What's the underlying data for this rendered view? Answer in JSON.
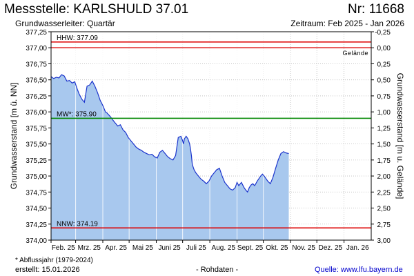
{
  "header": {
    "title": "Messstelle: KARLSHULD 37.01",
    "number": "Nr: 11668",
    "aquifer": "Grundwasserleiter: Quartär",
    "period": "Zeitraum: Feb 2025 - Jan 2026"
  },
  "footer": {
    "note": "* Abflussjahr (1979-2024)",
    "created": "erstellt:  15.01.2026",
    "raw": "- Rohdaten -",
    "source": "Quelle: www.lfu.bayern.de"
  },
  "colors": {
    "area": "#a8c8ee",
    "line": "#1a33cc",
    "hhw": "#dd0000",
    "nnw": "#dd0000",
    "mw": "#008800",
    "gelaende": "#dd0000",
    "grid": "#bbbbbb"
  },
  "chart_data": {
    "type": "area",
    "ylabel": "Grundwasserstand [m ü. NN]",
    "ylabel_right": "Grundwasserstand [m u. Gelände]",
    "ylim": [
      374.0,
      377.25
    ],
    "ylim_right": [
      -0.25,
      3.0
    ],
    "yticks": [
      "374,00",
      "374,25",
      "374,50",
      "374,75",
      "375,00",
      "375,25",
      "375,50",
      "375,75",
      "376,00",
      "376,25",
      "376,50",
      "376,75",
      "377,00",
      "377,25"
    ],
    "yticks_right": [
      "-0,25",
      "0,00",
      "0,25",
      "0,50",
      "0,75",
      "1,00",
      "1,25",
      "1,50",
      "1,75",
      "2,00",
      "2,25",
      "2,50",
      "2,75",
      "3,00"
    ],
    "months": [
      "Feb. 25",
      "Mrz. 25",
      "Apr. 25",
      "Mai 25",
      "Juni 25",
      "Juli 25",
      "Aug. 25",
      "Sept. 25",
      "Okt. 25",
      "Nov. 25",
      "Dez. 25",
      "Jan. 26"
    ],
    "x_range_days": [
      0,
      365
    ],
    "reference_lines": [
      {
        "name": "HHW",
        "label": "HHW: 377.09",
        "value": 377.09
      },
      {
        "name": "MW",
        "label": "MW*: 375.90",
        "value": 375.9
      },
      {
        "name": "NNW",
        "label": "NNW: 374.19",
        "value": 374.19
      }
    ],
    "gelaende": {
      "label": "Gelände",
      "value": 377.0
    },
    "series": [
      {
        "x": [
          0,
          3,
          6,
          9,
          12,
          15,
          18,
          21,
          24,
          27,
          30,
          32,
          35,
          38,
          41,
          44,
          47,
          50,
          53,
          56,
          59,
          62,
          64,
          66,
          68,
          70,
          73,
          76,
          79,
          82,
          85,
          88,
          91,
          94,
          97,
          100,
          103,
          106,
          109,
          112,
          115,
          118,
          121,
          124,
          127,
          130,
          133,
          136,
          139,
          142,
          145,
          148,
          150,
          151,
          152,
          154,
          156,
          158,
          159,
          160,
          161,
          163,
          165,
          168,
          171,
          174,
          177,
          180,
          183,
          186,
          189,
          192,
          195,
          198,
          201,
          204,
          207,
          210,
          212,
          214,
          217,
          220,
          222,
          224,
          226,
          228,
          230,
          232,
          233,
          235,
          237,
          239,
          241,
          244,
          247,
          250,
          253,
          256,
          259,
          262,
          265,
          268,
          271
        ],
        "y": [
          376.55,
          376.52,
          376.54,
          376.53,
          376.58,
          376.56,
          376.48,
          376.49,
          376.45,
          376.47,
          376.35,
          376.28,
          376.2,
          376.15,
          376.4,
          376.42,
          376.48,
          376.4,
          376.3,
          376.18,
          376.1,
          376.0,
          375.98,
          375.95,
          375.92,
          375.88,
          375.83,
          375.78,
          375.8,
          375.72,
          375.68,
          375.6,
          375.55,
          375.5,
          375.45,
          375.42,
          375.4,
          375.37,
          375.35,
          375.33,
          375.34,
          375.3,
          375.28,
          375.37,
          375.4,
          375.35,
          375.3,
          375.27,
          375.25,
          375.32,
          375.6,
          375.62,
          375.55,
          375.5,
          375.58,
          375.62,
          375.58,
          375.5,
          375.42,
          375.32,
          375.18,
          375.1,
          375.05,
          375.0,
          374.95,
          374.92,
          374.88,
          374.92,
          375.0,
          375.05,
          375.1,
          375.12,
          375.0,
          374.9,
          374.85,
          374.8,
          374.78,
          374.82,
          374.9,
          374.85,
          374.9,
          374.82,
          374.78,
          374.75,
          374.82,
          374.86,
          374.88,
          374.85,
          374.87,
          374.92,
          374.96,
          375.0,
          375.03,
          374.98,
          374.92,
          374.88,
          374.98,
          375.12,
          375.25,
          375.35,
          375.38,
          375.36,
          375.35
        ]
      }
    ]
  }
}
